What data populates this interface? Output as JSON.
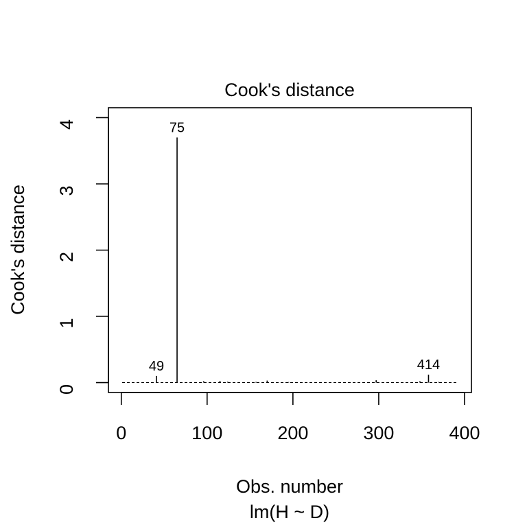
{
  "chart_data": {
    "type": "bar",
    "title": "Cook's distance",
    "xlabel": "Obs. number",
    "subtitle": "lm(H ~ D)",
    "ylabel": "Cook's distance",
    "xlim": [
      -15,
      408
    ],
    "ylim": [
      -0.15,
      4.15
    ],
    "xticks": [
      0,
      100,
      200,
      300,
      400
    ],
    "yticks": [
      0,
      1,
      2,
      3,
      4
    ],
    "n_obs": 392,
    "grid": false,
    "baseline_style": "dashed",
    "points": [
      {
        "x": 41,
        "y": 0.1,
        "label": "49"
      },
      {
        "x": 65,
        "y": 3.7,
        "label": "75"
      },
      {
        "x": 358,
        "y": 0.12,
        "label": "414"
      },
      {
        "x": 96,
        "y": 0.02,
        "label": ""
      },
      {
        "x": 115,
        "y": 0.025,
        "label": ""
      },
      {
        "x": 124,
        "y": 0.012,
        "label": ""
      },
      {
        "x": 157,
        "y": 0.01,
        "label": ""
      },
      {
        "x": 170,
        "y": 0.03,
        "label": ""
      },
      {
        "x": 195,
        "y": 0.008,
        "label": ""
      },
      {
        "x": 297,
        "y": 0.035,
        "label": ""
      },
      {
        "x": 348,
        "y": 0.02,
        "label": ""
      },
      {
        "x": 370,
        "y": 0.01,
        "label": ""
      }
    ]
  }
}
